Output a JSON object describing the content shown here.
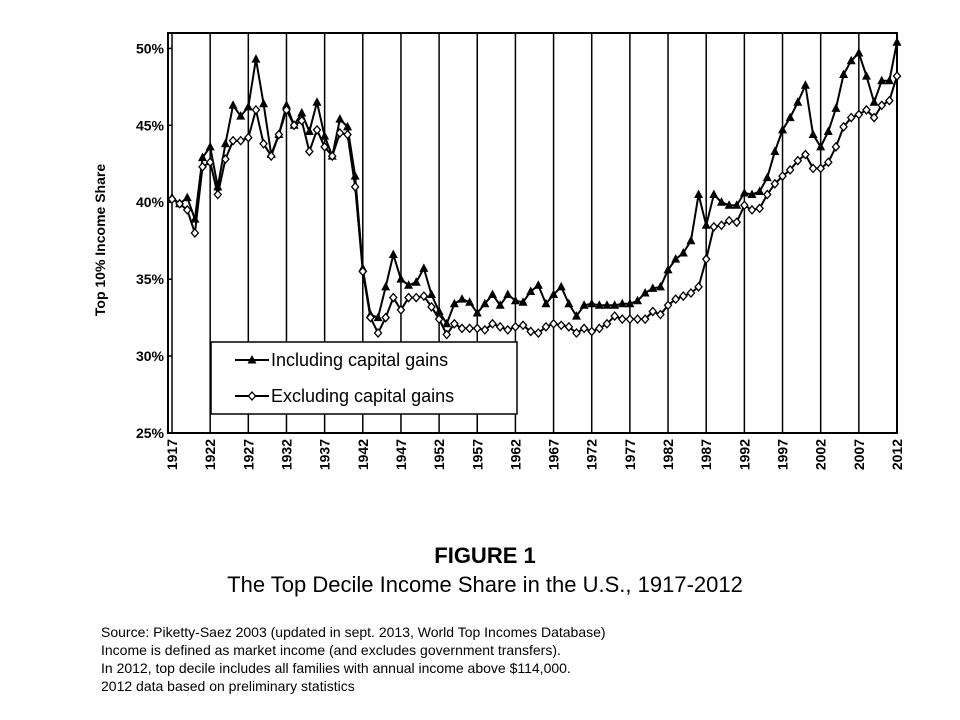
{
  "chart_data": {
    "type": "line",
    "y_label": "Top 10% Income Share",
    "figure_label": "FIGURE 1",
    "title": "The Top Decile Income Share in the U.S., 1917-2012",
    "notes": [
      "Source: Piketty-Saez 2003 (updated in sept. 2013, World Top Incomes Database)",
      "Income is defined as market income (and excludes government transfers).",
      "In 2012, top decile includes all families with annual income above $114,000.",
      "2012 data based on preliminary statistics"
    ],
    "x": [
      1917,
      1918,
      1919,
      1920,
      1921,
      1922,
      1923,
      1924,
      1925,
      1926,
      1927,
      1928,
      1929,
      1930,
      1931,
      1932,
      1933,
      1934,
      1935,
      1936,
      1937,
      1938,
      1939,
      1940,
      1941,
      1942,
      1943,
      1944,
      1945,
      1946,
      1947,
      1948,
      1949,
      1950,
      1951,
      1952,
      1953,
      1954,
      1955,
      1956,
      1957,
      1958,
      1959,
      1960,
      1961,
      1962,
      1963,
      1964,
      1965,
      1966,
      1967,
      1968,
      1969,
      1970,
      1971,
      1972,
      1973,
      1974,
      1975,
      1976,
      1977,
      1978,
      1979,
      1980,
      1981,
      1982,
      1983,
      1984,
      1985,
      1986,
      1987,
      1988,
      1989,
      1990,
      1991,
      1992,
      1993,
      1994,
      1995,
      1996,
      1997,
      1998,
      1999,
      2000,
      2001,
      2002,
      2003,
      2004,
      2005,
      2006,
      2007,
      2008,
      2009,
      2010,
      2011,
      2012
    ],
    "series": [
      {
        "name": "Including capital gains",
        "color": "#000000",
        "marker": "triangle",
        "values": [
          40.3,
          39.9,
          40.3,
          38.9,
          42.9,
          43.6,
          41.0,
          43.8,
          46.3,
          45.6,
          46.2,
          49.3,
          46.4,
          43.1,
          44.4,
          46.3,
          45.0,
          45.8,
          44.6,
          46.5,
          44.3,
          43.0,
          45.4,
          44.9,
          41.7,
          35.7,
          32.7,
          32.5,
          34.5,
          36.6,
          35.0,
          34.6,
          34.8,
          35.7,
          34.0,
          32.9,
          32.1,
          33.4,
          33.7,
          33.5,
          32.8,
          33.4,
          34.0,
          33.3,
          34.0,
          33.6,
          33.5,
          34.2,
          34.6,
          33.4,
          34.0,
          34.5,
          33.4,
          32.6,
          33.3,
          33.4,
          33.3,
          33.3,
          33.3,
          33.4,
          33.4,
          33.6,
          34.1,
          34.4,
          34.5,
          35.6,
          36.3,
          36.7,
          37.5,
          40.5,
          38.5,
          40.5,
          40.0,
          39.8,
          39.8,
          40.6,
          40.5,
          40.7,
          41.6,
          43.3,
          44.7,
          45.5,
          46.5,
          47.6,
          44.4,
          43.6,
          44.6,
          46.1,
          48.3,
          49.2,
          49.7,
          48.2,
          46.5,
          47.9,
          47.9,
          50.4
        ]
      },
      {
        "name": "Excluding capital gains",
        "color": "#000000",
        "marker": "diamond",
        "values": [
          40.2,
          39.9,
          39.5,
          38.0,
          42.3,
          42.6,
          40.5,
          42.8,
          44.0,
          44.0,
          44.2,
          46.0,
          43.8,
          43.0,
          44.4,
          46.0,
          45.0,
          45.3,
          43.3,
          44.7,
          43.6,
          43.0,
          44.5,
          44.4,
          41.0,
          35.5,
          32.5,
          31.5,
          32.5,
          33.8,
          33.0,
          33.8,
          33.8,
          33.9,
          33.2,
          32.4,
          31.4,
          32.1,
          31.8,
          31.8,
          31.8,
          31.7,
          32.1,
          31.9,
          31.7,
          31.9,
          32.0,
          31.6,
          31.5,
          31.9,
          32.1,
          32.0,
          31.9,
          31.5,
          31.8,
          31.6,
          31.8,
          32.1,
          32.6,
          32.4,
          32.4,
          32.4,
          32.4,
          32.9,
          32.7,
          33.3,
          33.7,
          33.9,
          34.1,
          34.5,
          36.3,
          38.4,
          38.5,
          38.8,
          38.7,
          39.8,
          39.5,
          39.6,
          40.5,
          41.2,
          41.7,
          42.1,
          42.7,
          43.1,
          42.2,
          42.2,
          42.6,
          43.6,
          44.9,
          45.5,
          45.7,
          46.0,
          45.5,
          46.3,
          46.6,
          48.2
        ]
      }
    ],
    "xlim": [
      1917,
      2012
    ],
    "xticks": [
      1917,
      1922,
      1927,
      1932,
      1937,
      1942,
      1947,
      1952,
      1957,
      1962,
      1967,
      1972,
      1977,
      1982,
      1987,
      1992,
      1997,
      2002,
      2007,
      2012
    ],
    "ylim": [
      25,
      51
    ],
    "yticks": [
      {
        "value": 25,
        "label": "25%"
      },
      {
        "value": 30,
        "label": "30%"
      },
      {
        "value": 35,
        "label": "35%"
      },
      {
        "value": 40,
        "label": "40%"
      },
      {
        "value": 45,
        "label": "45%"
      },
      {
        "value": 50,
        "label": "50%"
      }
    ],
    "grid": "x",
    "legend": "lower left"
  }
}
